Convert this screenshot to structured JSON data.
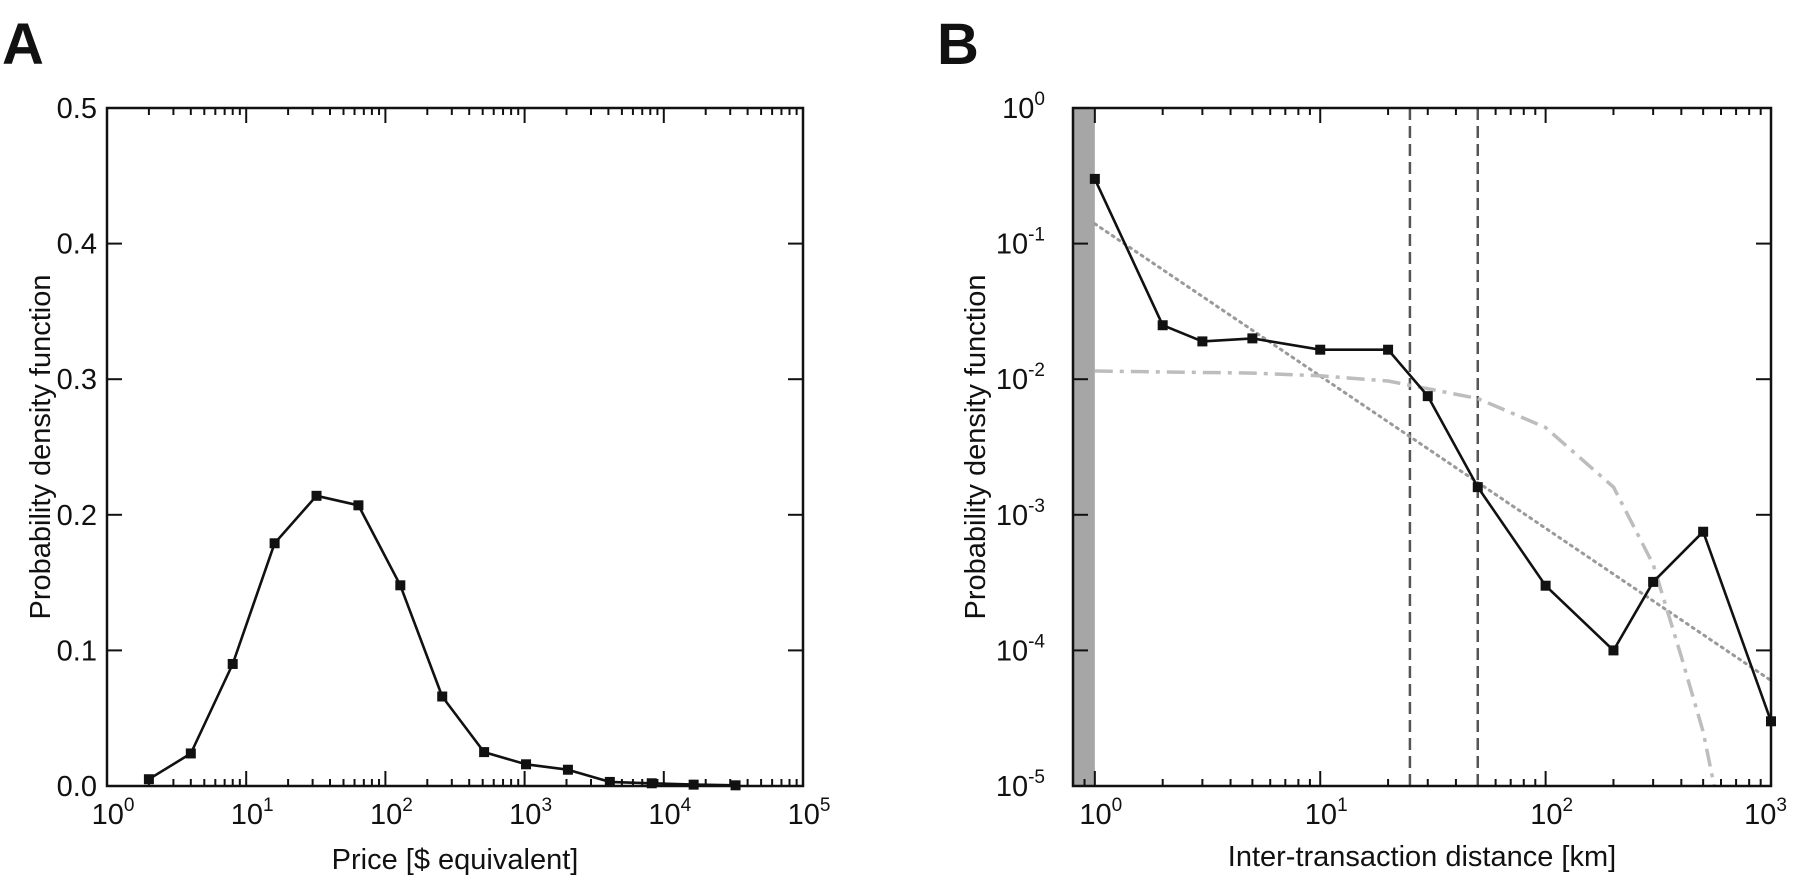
{
  "panels": [
    "A",
    "B"
  ],
  "chart_data": [
    {
      "panel": "A",
      "type": "line",
      "xlabel": "Price [$ equivalent]",
      "ylabel": "Probability density function",
      "xscale": "log",
      "xlim": [
        1,
        100000
      ],
      "ylim": [
        0,
        0.5
      ],
      "xticks": [
        {
          "base": "10",
          "exp": "0",
          "value": 1
        },
        {
          "base": "10",
          "exp": "1",
          "value": 10
        },
        {
          "base": "10",
          "exp": "2",
          "value": 100
        },
        {
          "base": "10",
          "exp": "3",
          "value": 1000
        },
        {
          "base": "10",
          "exp": "4",
          "value": 10000
        },
        {
          "base": "10",
          "exp": "5",
          "value": 100000
        }
      ],
      "yticks": [
        {
          "label": "0.0",
          "value": 0
        },
        {
          "label": "0.1",
          "value": 0.1
        },
        {
          "label": "0.2",
          "value": 0.2
        },
        {
          "label": "0.3",
          "value": 0.3
        },
        {
          "label": "0.4",
          "value": 0.4
        },
        {
          "label": "0.5",
          "value": 0.5
        }
      ],
      "series": [
        {
          "x": [
            2,
            4,
            8,
            16,
            32,
            64,
            128,
            256,
            512,
            1024,
            2048,
            4096,
            8192,
            16384,
            32768
          ],
          "y": [
            0.005,
            0.024,
            0.09,
            0.179,
            0.214,
            0.207,
            0.148,
            0.066,
            0.025,
            0.016,
            0.012,
            0.003,
            0.002,
            0.001,
            0.0005
          ]
        }
      ],
      "colors": {
        "line": "#111111"
      }
    },
    {
      "panel": "B",
      "type": "line",
      "xlabel": "Inter-transaction distance [km]",
      "ylabel": "Probability density function",
      "xscale": "log",
      "yscale": "log",
      "xlim": [
        0.8,
        1000
      ],
      "ylim": [
        1e-05,
        1
      ],
      "xticks": [
        {
          "base": "10",
          "exp": "0",
          "value": 1
        },
        {
          "base": "10",
          "exp": "1",
          "value": 10
        },
        {
          "base": "10",
          "exp": "2",
          "value": 100
        },
        {
          "base": "10",
          "exp": "3",
          "value": 1000
        }
      ],
      "yticks": [
        {
          "base": "10",
          "exp": "-5",
          "value": 1e-05
        },
        {
          "base": "10",
          "exp": "-4",
          "value": 0.0001
        },
        {
          "base": "10",
          "exp": "-3",
          "value": 0.001
        },
        {
          "base": "10",
          "exp": "-2",
          "value": 0.01
        },
        {
          "base": "10",
          "exp": "-1",
          "value": 0.1
        },
        {
          "base": "10",
          "exp": "0",
          "value": 1
        }
      ],
      "shaded_region_x": [
        0.8,
        1
      ],
      "vlines_x": [
        25,
        50
      ],
      "series": [
        {
          "style": "solid-markers",
          "x": [
            1,
            2,
            3,
            5,
            10,
            20,
            30,
            50,
            100,
            200,
            300,
            500,
            1000
          ],
          "y": [
            0.3,
            0.025,
            0.019,
            0.02,
            0.0165,
            0.0165,
            0.0075,
            0.0016,
            0.0003,
            0.0001,
            0.00032,
            0.00075,
            3e-05
          ]
        },
        {
          "style": "dotted",
          "x": [
            1,
            1000
          ],
          "y": [
            0.14,
            6e-05
          ]
        },
        {
          "style": "dash-dot",
          "x": [
            1,
            5,
            10,
            20,
            50,
            100,
            200,
            300,
            400,
            500,
            560
          ],
          "y": [
            0.0115,
            0.0111,
            0.0106,
            0.0097,
            0.0072,
            0.0044,
            0.0016,
            0.00043,
            9e-05,
            2.5e-05,
            1e-05
          ]
        }
      ],
      "colors": {
        "line": "#111111",
        "dotted": "#9a9a9a",
        "dashdot": "#bdbdbd",
        "shade": "#a6a6a6",
        "vline": "#555555"
      }
    }
  ]
}
